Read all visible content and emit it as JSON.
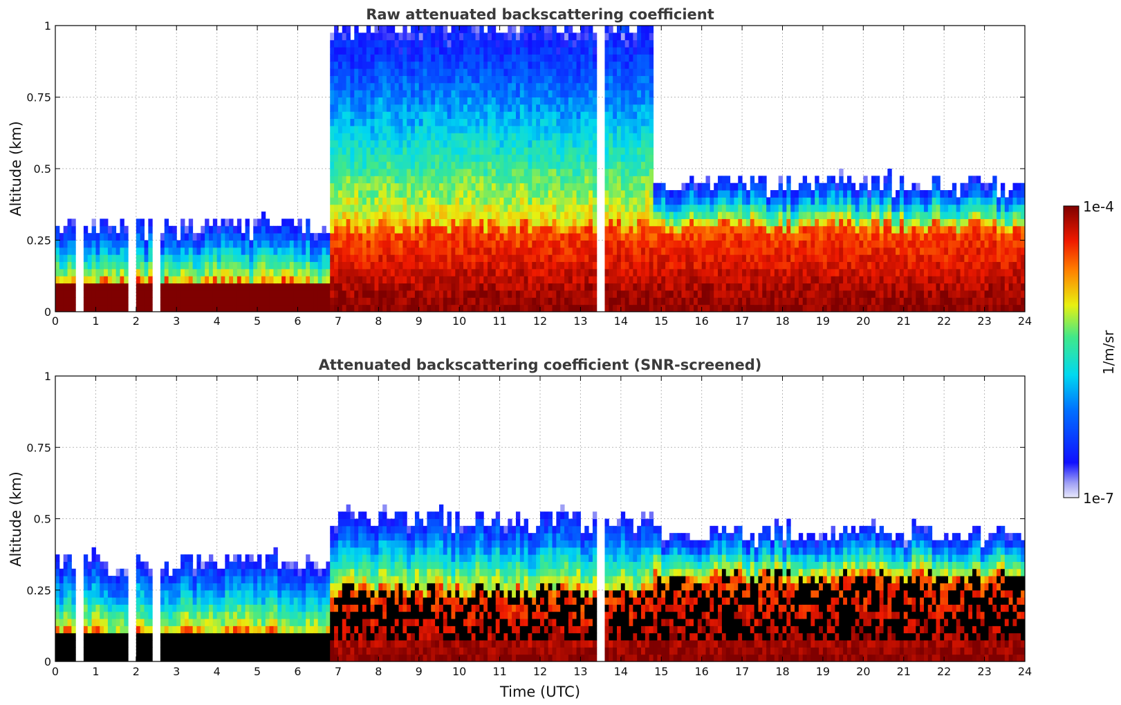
{
  "chart_data": [
    {
      "type": "heatmap",
      "title": "Raw attenuated backscattering coefficient",
      "xlabel": "",
      "ylabel": "Altitude (km)",
      "xlim": [
        0,
        24
      ],
      "ylim": [
        0,
        1
      ],
      "x_ticks": [
        "0",
        "1",
        "2",
        "3",
        "4",
        "5",
        "6",
        "7",
        "8",
        "9",
        "10",
        "11",
        "12",
        "13",
        "14",
        "15",
        "16",
        "17",
        "18",
        "19",
        "20",
        "21",
        "22",
        "23",
        "24"
      ],
      "y_ticks": [
        "0",
        "0.25",
        "0.5",
        "0.75",
        "1"
      ],
      "grid": true,
      "colormap": "jet",
      "color_scale": "log",
      "data_gaps_hours": [
        0.6,
        1.9,
        2.5,
        13.5
      ],
      "layers": [
        {
          "from": 0,
          "to": 6.8,
          "strong_top_km": 0.1,
          "weak_top_km": 0.3
        },
        {
          "from": 6.8,
          "to": 14.8,
          "strong_top_km": 0.3,
          "weak_top_km": 1.0
        },
        {
          "from": 14.8,
          "to": 24,
          "strong_top_km": 0.3,
          "weak_top_km": 0.45
        }
      ]
    },
    {
      "type": "heatmap",
      "title": "Attenuated backscattering coefficient (SNR-screened)",
      "xlabel": "Time (UTC)",
      "ylabel": "Altitude (km)",
      "xlim": [
        0,
        24
      ],
      "ylim": [
        0,
        1
      ],
      "x_ticks": [
        "0",
        "1",
        "2",
        "3",
        "4",
        "5",
        "6",
        "7",
        "8",
        "9",
        "10",
        "11",
        "12",
        "13",
        "14",
        "15",
        "16",
        "17",
        "18",
        "19",
        "20",
        "21",
        "22",
        "23",
        "24"
      ],
      "y_ticks": [
        "0",
        "0.25",
        "0.5",
        "0.75",
        "1"
      ],
      "grid": true,
      "colormap": "jet",
      "color_scale": "log",
      "data_gaps_hours": [
        0.6,
        1.9,
        2.5,
        13.5
      ],
      "layers": [
        {
          "from": 0,
          "to": 6.8,
          "strong_top_km": 0.1,
          "weak_top_km": 0.35
        },
        {
          "from": 6.8,
          "to": 14.8,
          "strong_top_km": 0.25,
          "weak_top_km": 0.5
        },
        {
          "from": 14.8,
          "to": 24,
          "strong_top_km": 0.3,
          "weak_top_km": 0.45
        }
      ]
    }
  ],
  "colorbar": {
    "label": "1/m/sr",
    "max_label": "1e-4",
    "min_label": "1e-7",
    "colormap": "jet"
  }
}
